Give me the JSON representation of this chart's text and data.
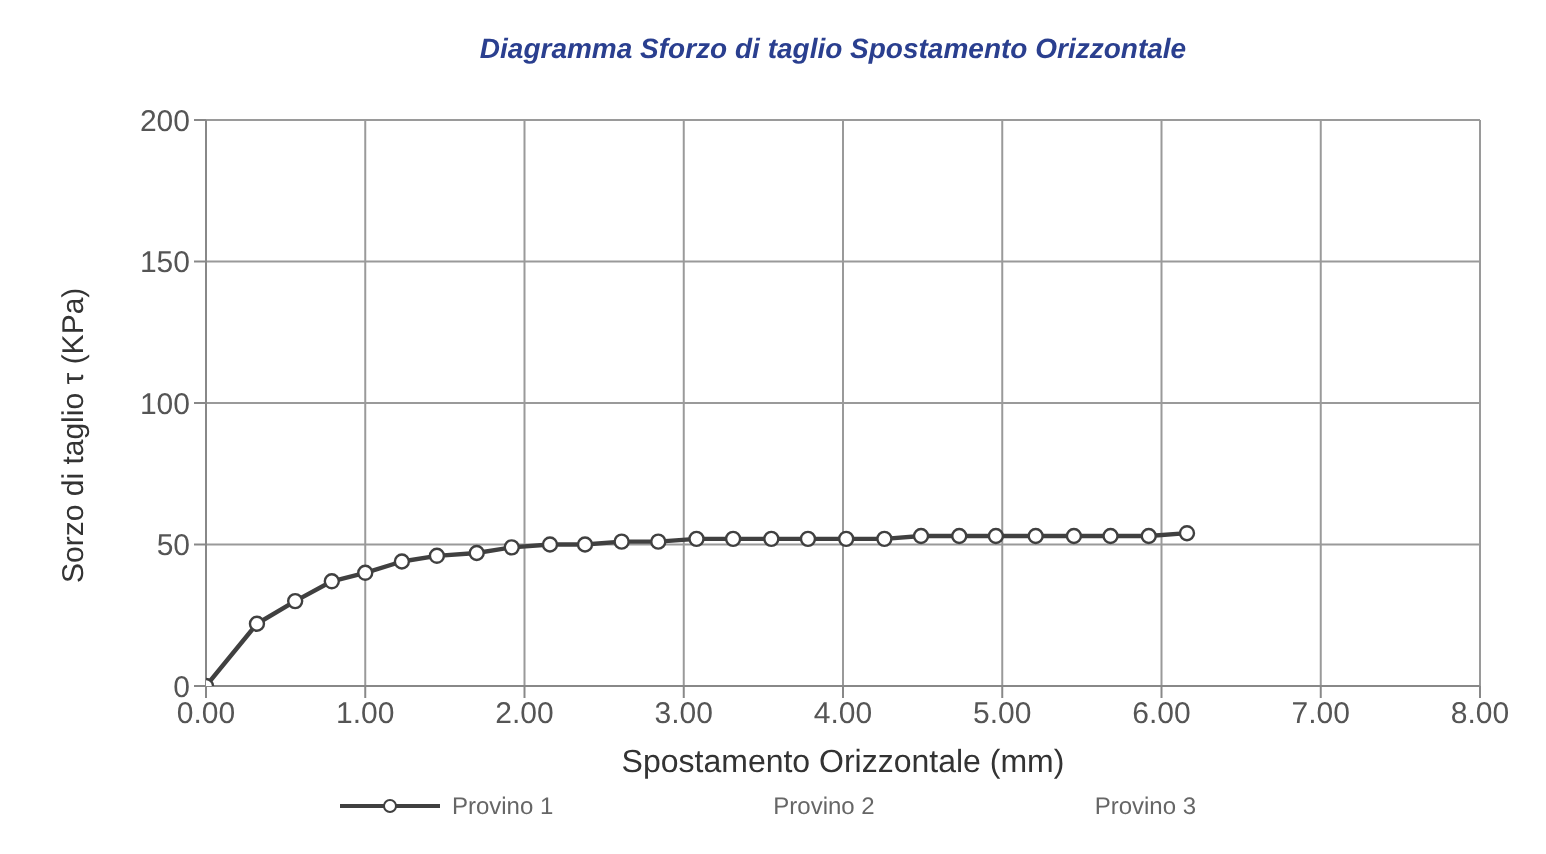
{
  "chart_data": {
    "type": "line",
    "title": "Diagramma Sforzo di taglio Spostamento Orizzontale",
    "xlabel": "Spostamento Orizzontale (mm)",
    "ylabel": "Sorzo di  taglio τ    (KPa)",
    "x": [
      0,
      0.32,
      0.56,
      0.79,
      1.0,
      1.23,
      1.45,
      1.7,
      1.92,
      2.16,
      2.38,
      2.61,
      2.84,
      3.08,
      3.31,
      3.55,
      3.78,
      4.02,
      4.26,
      4.49,
      4.73,
      4.96,
      5.21,
      5.45,
      5.68,
      5.92,
      6.16
    ],
    "series": [
      {
        "name": "Provino 1",
        "color": "#404040",
        "values": [
          0,
          22,
          30,
          37,
          40,
          44,
          46,
          47,
          49,
          50,
          50,
          51,
          51,
          52,
          52,
          52,
          52,
          52,
          52,
          53,
          53,
          53,
          53,
          53,
          53,
          53,
          54
        ]
      },
      {
        "name": "Provino 2",
        "values": [
          null,
          null,
          null,
          null,
          null,
          null,
          null,
          null,
          null,
          null,
          null,
          null,
          null,
          null,
          null,
          null,
          null,
          null,
          null,
          null,
          null,
          null,
          null,
          null,
          null,
          null,
          null
        ]
      },
      {
        "name": "Provino 3",
        "values": [
          null,
          null,
          null,
          null,
          null,
          null,
          null,
          null,
          null,
          null,
          null,
          null,
          null,
          null,
          null,
          null,
          null,
          null,
          null,
          null,
          null,
          null,
          null,
          null,
          null,
          null,
          null
        ]
      }
    ],
    "xlim": [
      0,
      8
    ],
    "xticks": [
      {
        "value": 0,
        "label": "0.00"
      },
      {
        "value": 1,
        "label": "1.00"
      },
      {
        "value": 2,
        "label": "2.00"
      },
      {
        "value": 3,
        "label": "3.00"
      },
      {
        "value": 4,
        "label": "4.00"
      },
      {
        "value": 5,
        "label": "5.00"
      },
      {
        "value": 6,
        "label": "6.00"
      },
      {
        "value": 7,
        "label": "7.00"
      },
      {
        "value": 8,
        "label": "8.00"
      }
    ],
    "ylim": [
      0,
      200
    ],
    "yticks": [
      0,
      50,
      100,
      150,
      200
    ],
    "grid": true,
    "legend": "bottom",
    "marker": "circle",
    "line_style": "solid"
  }
}
